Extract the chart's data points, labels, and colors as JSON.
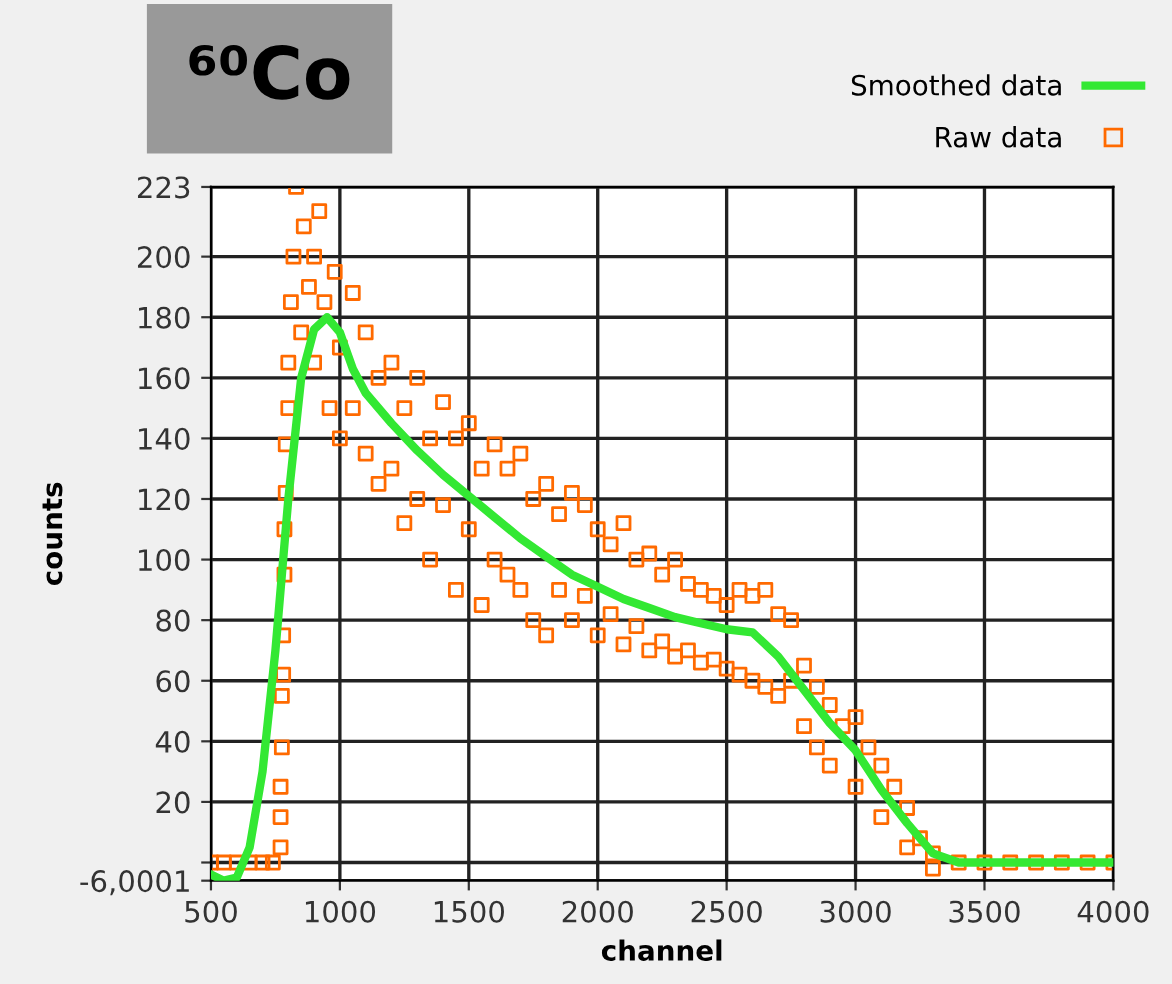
{
  "chart_data": {
    "type": "line",
    "title": "⁶⁰Co",
    "xlabel": "channel",
    "ylabel": "counts",
    "xlim": [
      500,
      4000
    ],
    "xticks": [
      500,
      1000,
      1500,
      2000,
      2500,
      3000,
      3500,
      4000
    ],
    "ylim": [
      -6.0001,
      223
    ],
    "yticks": [
      {
        "value": -6.0001,
        "label": "-6,0001"
      },
      {
        "value": 0,
        "label": null
      },
      20,
      40,
      60,
      80,
      100,
      120,
      140,
      160,
      180,
      200,
      223
    ],
    "grid": true,
    "legend": "top right",
    "series": [
      {
        "name": "Smoothed data",
        "marker": "none",
        "line_style": "solid",
        "color": "#33e833",
        "x": [
          500,
          550,
          600,
          650,
          700,
          750,
          800,
          850,
          900,
          950,
          1000,
          1050,
          1100,
          1200,
          1300,
          1400,
          1500,
          1600,
          1700,
          1800,
          1900,
          2000,
          2100,
          2200,
          2300,
          2400,
          2500,
          2600,
          2700,
          2800,
          2900,
          3000,
          3100,
          3200,
          3300,
          3400,
          3500,
          4000
        ],
        "values": [
          -4,
          -6,
          -5,
          5,
          30,
          70,
          120,
          160,
          176,
          180,
          175,
          163,
          155,
          145,
          136,
          128,
          121,
          114,
          107,
          101,
          95,
          91,
          87,
          84,
          81,
          79,
          77,
          76,
          68,
          57,
          46,
          37,
          24,
          13,
          3,
          0,
          0,
          0
        ]
      },
      {
        "name": "Raw data",
        "type": "scatter",
        "marker": "square",
        "color": "#ff6a00",
        "x": [
          500,
          550,
          600,
          650,
          700,
          740,
          770,
          770,
          770,
          775,
          775,
          780,
          780,
          785,
          785,
          790,
          790,
          800,
          800,
          810,
          820,
          830,
          850,
          860,
          880,
          900,
          900,
          920,
          940,
          960,
          980,
          1000,
          1000,
          1050,
          1050,
          1100,
          1100,
          1150,
          1150,
          1200,
          1200,
          1250,
          1250,
          1300,
          1300,
          1350,
          1350,
          1400,
          1400,
          1450,
          1450,
          1500,
          1500,
          1550,
          1550,
          1600,
          1600,
          1650,
          1650,
          1700,
          1700,
          1750,
          1750,
          1800,
          1800,
          1850,
          1850,
          1900,
          1900,
          1950,
          1950,
          2000,
          2000,
          2050,
          2050,
          2100,
          2100,
          2150,
          2150,
          2200,
          2200,
          2250,
          2250,
          2300,
          2300,
          2350,
          2350,
          2400,
          2400,
          2450,
          2450,
          2500,
          2500,
          2550,
          2550,
          2600,
          2600,
          2650,
          2650,
          2700,
          2700,
          2750,
          2750,
          2800,
          2800,
          2850,
          2850,
          2900,
          2900,
          2950,
          3000,
          3000,
          3050,
          3100,
          3100,
          3150,
          3200,
          3200,
          3250,
          3300,
          3300,
          3400,
          3500,
          3600,
          3700,
          3800,
          3900,
          4000
        ],
        "values": [
          0,
          0,
          0,
          0,
          0,
          0,
          5,
          15,
          25,
          38,
          55,
          62,
          75,
          95,
          110,
          122,
          138,
          150,
          165,
          185,
          200,
          223,
          175,
          210,
          190,
          165,
          200,
          215,
          185,
          150,
          195,
          170,
          140,
          188,
          150,
          175,
          135,
          160,
          125,
          165,
          130,
          150,
          112,
          160,
          120,
          140,
          100,
          152,
          118,
          140,
          90,
          145,
          110,
          130,
          85,
          138,
          100,
          130,
          95,
          135,
          90,
          120,
          80,
          125,
          75,
          115,
          90,
          122,
          80,
          118,
          88,
          110,
          75,
          105,
          82,
          112,
          72,
          100,
          78,
          102,
          70,
          95,
          73,
          100,
          68,
          92,
          70,
          90,
          66,
          88,
          67,
          85,
          64,
          90,
          62,
          88,
          60,
          90,
          58,
          82,
          55,
          80,
          60,
          65,
          45,
          58,
          38,
          52,
          32,
          45,
          48,
          25,
          38,
          32,
          15,
          25,
          18,
          5,
          8,
          3,
          -2,
          0,
          0,
          0,
          0,
          0,
          0,
          0
        ]
      }
    ]
  }
}
